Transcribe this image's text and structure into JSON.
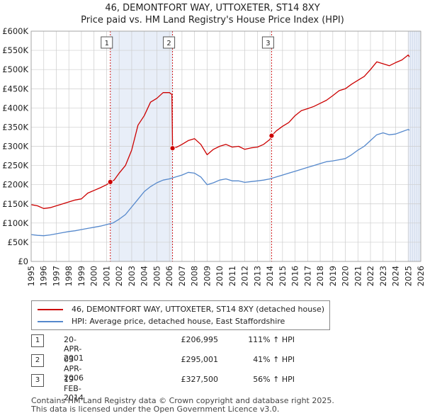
{
  "title_line1": "46, DEMONTFORT WAY, UTTOXETER, ST14 8XY",
  "title_line2": "Price paid vs. HM Land Registry's House Price Index (HPI)",
  "colors": {
    "property": "#cc0000",
    "hpi": "#5588cc",
    "shade": "#e8eef8",
    "marker_line": "#cc0000",
    "grid": "#cccccc"
  },
  "chart_data": {
    "type": "line",
    "title": "Price paid vs. HM Land Registry's House Price Index (HPI)",
    "xlim": [
      1995,
      2026
    ],
    "ylim": [
      0,
      600000
    ],
    "y_ticks": [
      0,
      50000,
      100000,
      150000,
      200000,
      250000,
      300000,
      350000,
      400000,
      450000,
      500000,
      550000,
      600000
    ],
    "y_tick_labels": [
      "£0",
      "£50K",
      "£100K",
      "£150K",
      "£200K",
      "£250K",
      "£300K",
      "£350K",
      "£400K",
      "£450K",
      "£500K",
      "£550K",
      "£600K"
    ],
    "x_ticks": [
      1995,
      1996,
      1997,
      1998,
      1999,
      2000,
      2001,
      2002,
      2003,
      2004,
      2005,
      2006,
      2007,
      2008,
      2009,
      2010,
      2011,
      2012,
      2013,
      2014,
      2015,
      2016,
      2017,
      2018,
      2019,
      2020,
      2021,
      2022,
      2023,
      2024,
      2025,
      2026
    ],
    "x_tick_labels": [
      "1995",
      "1996",
      "1997",
      "1998",
      "1999",
      "2000",
      "2001",
      "2002",
      "2003",
      "2004",
      "2005",
      "2006",
      "2007",
      "2008",
      "2009",
      "2010",
      "2011",
      "2012",
      "2013",
      "2014",
      "2015",
      "2016",
      "2017",
      "2018",
      "2019",
      "2020",
      "2021",
      "2022",
      "2023",
      "2024",
      "2025",
      "2026"
    ],
    "shaded_ranges": [
      [
        2001.3,
        2006.25
      ],
      [
        2025.0,
        2026.0
      ]
    ],
    "series": [
      {
        "name": "46, DEMONTFORT WAY, UTTOXETER, ST14 8XY (detached house)",
        "color": "#cc0000",
        "points": [
          [
            1995.0,
            148000
          ],
          [
            1995.5,
            145000
          ],
          [
            1996.0,
            138000
          ],
          [
            1996.5,
            140000
          ],
          [
            1997.0,
            145000
          ],
          [
            1997.5,
            150000
          ],
          [
            1998.0,
            155000
          ],
          [
            1998.5,
            160000
          ],
          [
            1999.0,
            163000
          ],
          [
            1999.5,
            178000
          ],
          [
            2000.0,
            185000
          ],
          [
            2000.5,
            192000
          ],
          [
            2001.0,
            200000
          ],
          [
            2001.3,
            206995
          ],
          [
            2001.6,
            212000
          ],
          [
            2002.0,
            230000
          ],
          [
            2002.5,
            250000
          ],
          [
            2003.0,
            290000
          ],
          [
            2003.5,
            355000
          ],
          [
            2004.0,
            380000
          ],
          [
            2004.5,
            415000
          ],
          [
            2005.0,
            425000
          ],
          [
            2005.5,
            440000
          ],
          [
            2006.0,
            440000
          ],
          [
            2006.2,
            435000
          ],
          [
            2006.25,
            295001
          ],
          [
            2006.6,
            298000
          ],
          [
            2007.0,
            305000
          ],
          [
            2007.5,
            315000
          ],
          [
            2008.0,
            320000
          ],
          [
            2008.5,
            305000
          ],
          [
            2009.0,
            278000
          ],
          [
            2009.5,
            292000
          ],
          [
            2010.0,
            300000
          ],
          [
            2010.5,
            305000
          ],
          [
            2011.0,
            298000
          ],
          [
            2011.5,
            300000
          ],
          [
            2012.0,
            292000
          ],
          [
            2012.5,
            296000
          ],
          [
            2013.0,
            298000
          ],
          [
            2013.5,
            305000
          ],
          [
            2014.0,
            318000
          ],
          [
            2014.13,
            327500
          ],
          [
            2014.5,
            340000
          ],
          [
            2015.0,
            352000
          ],
          [
            2015.5,
            362000
          ],
          [
            2016.0,
            380000
          ],
          [
            2016.5,
            393000
          ],
          [
            2017.0,
            398000
          ],
          [
            2017.5,
            404000
          ],
          [
            2018.0,
            412000
          ],
          [
            2018.5,
            420000
          ],
          [
            2019.0,
            432000
          ],
          [
            2019.5,
            445000
          ],
          [
            2020.0,
            450000
          ],
          [
            2020.5,
            462000
          ],
          [
            2021.0,
            472000
          ],
          [
            2021.5,
            482000
          ],
          [
            2022.0,
            500000
          ],
          [
            2022.5,
            520000
          ],
          [
            2023.0,
            515000
          ],
          [
            2023.5,
            510000
          ],
          [
            2024.0,
            518000
          ],
          [
            2024.5,
            525000
          ],
          [
            2025.0,
            538000
          ],
          [
            2025.1,
            533000
          ]
        ]
      },
      {
        "name": "HPI: Average price, detached house, East Staffordshire",
        "color": "#5588cc",
        "points": [
          [
            1995.0,
            70000
          ],
          [
            1995.5,
            68000
          ],
          [
            1996.0,
            67000
          ],
          [
            1996.5,
            69000
          ],
          [
            1997.0,
            72000
          ],
          [
            1997.5,
            75000
          ],
          [
            1998.0,
            78000
          ],
          [
            1998.5,
            80000
          ],
          [
            1999.0,
            83000
          ],
          [
            1999.5,
            86000
          ],
          [
            2000.0,
            89000
          ],
          [
            2000.5,
            92000
          ],
          [
            2001.0,
            96000
          ],
          [
            2001.5,
            100000
          ],
          [
            2002.0,
            110000
          ],
          [
            2002.5,
            122000
          ],
          [
            2003.0,
            142000
          ],
          [
            2003.5,
            162000
          ],
          [
            2004.0,
            182000
          ],
          [
            2004.5,
            195000
          ],
          [
            2005.0,
            205000
          ],
          [
            2005.5,
            212000
          ],
          [
            2006.0,
            215000
          ],
          [
            2006.5,
            220000
          ],
          [
            2007.0,
            225000
          ],
          [
            2007.5,
            232000
          ],
          [
            2008.0,
            230000
          ],
          [
            2008.5,
            220000
          ],
          [
            2009.0,
            200000
          ],
          [
            2009.5,
            205000
          ],
          [
            2010.0,
            212000
          ],
          [
            2010.5,
            215000
          ],
          [
            2011.0,
            210000
          ],
          [
            2011.5,
            210000
          ],
          [
            2012.0,
            206000
          ],
          [
            2012.5,
            208000
          ],
          [
            2013.0,
            210000
          ],
          [
            2013.5,
            212000
          ],
          [
            2014.0,
            215000
          ],
          [
            2014.5,
            220000
          ],
          [
            2015.0,
            225000
          ],
          [
            2015.5,
            230000
          ],
          [
            2016.0,
            235000
          ],
          [
            2016.5,
            240000
          ],
          [
            2017.0,
            245000
          ],
          [
            2017.5,
            250000
          ],
          [
            2018.0,
            255000
          ],
          [
            2018.5,
            260000
          ],
          [
            2019.0,
            262000
          ],
          [
            2019.5,
            265000
          ],
          [
            2020.0,
            268000
          ],
          [
            2020.5,
            278000
          ],
          [
            2021.0,
            290000
          ],
          [
            2021.5,
            300000
          ],
          [
            2022.0,
            315000
          ],
          [
            2022.5,
            330000
          ],
          [
            2023.0,
            335000
          ],
          [
            2023.5,
            330000
          ],
          [
            2024.0,
            332000
          ],
          [
            2024.5,
            338000
          ],
          [
            2025.0,
            344000
          ],
          [
            2025.1,
            342000
          ]
        ]
      }
    ],
    "sale_markers": [
      {
        "label": "1",
        "x": 2001.3,
        "y": 206995
      },
      {
        "label": "2",
        "x": 2006.25,
        "y": 295001
      },
      {
        "label": "3",
        "x": 2014.13,
        "y": 327500
      }
    ]
  },
  "legend": {
    "property_label": "46, DEMONTFORT WAY, UTTOXETER, ST14 8XY (detached house)",
    "hpi_label": "HPI: Average price, detached house, East Staffordshire"
  },
  "sales": [
    {
      "num": "1",
      "date": "20-APR-2001",
      "price": "£206,995",
      "hpi": "111% ↑ HPI"
    },
    {
      "num": "2",
      "date": "03-APR-2006",
      "price": "£295,001",
      "hpi": "41% ↑ HPI"
    },
    {
      "num": "3",
      "date": "19-FEB-2014",
      "price": "£327,500",
      "hpi": "56% ↑ HPI"
    }
  ],
  "footer": {
    "line1": "Contains HM Land Registry data © Crown copyright and database right 2025.",
    "line2": "This data is licensed under the Open Government Licence v3.0."
  }
}
